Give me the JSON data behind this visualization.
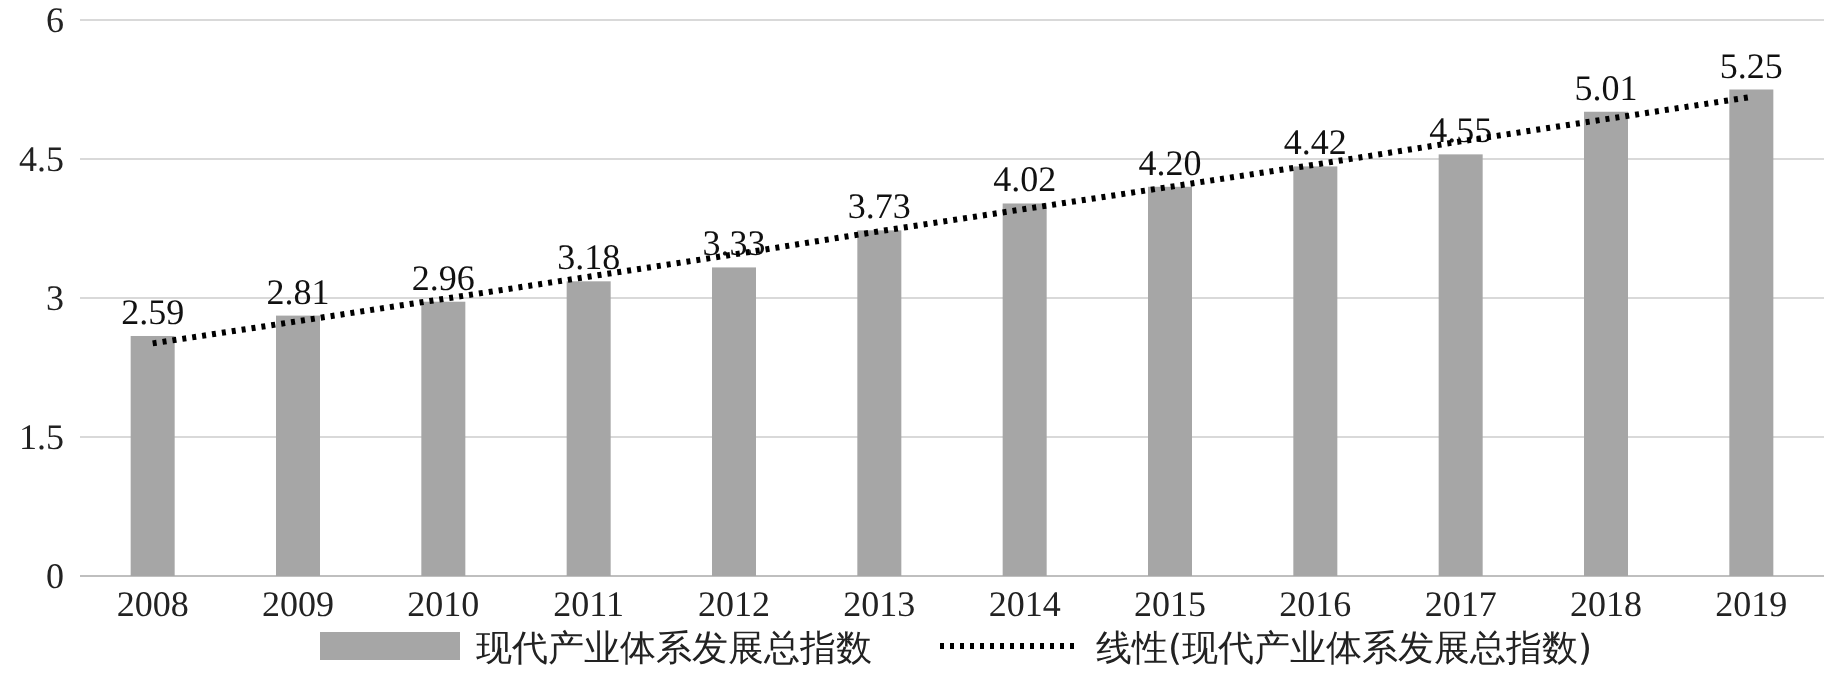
{
  "chart_data": {
    "type": "bar",
    "categories": [
      "2008",
      "2009",
      "2010",
      "2011",
      "2012",
      "2013",
      "2014",
      "2015",
      "2016",
      "2017",
      "2018",
      "2019"
    ],
    "series": [
      {
        "name": "现代产业体系发展总指数",
        "color": "#a6a6a6",
        "values": [
          2.59,
          2.81,
          2.96,
          3.18,
          3.33,
          3.73,
          4.02,
          4.2,
          4.42,
          4.55,
          5.01,
          5.25
        ],
        "value_labels": [
          "2.59",
          "2.81",
          "2.96",
          "3.18",
          "3.33",
          "3.73",
          "4.02",
          "4.20",
          "4.42",
          "4.55",
          "5.01",
          "5.25"
        ]
      },
      {
        "name": "线性(现代产业体系发展总指数)",
        "type": "line",
        "color": "#000000",
        "line_style": "dotted",
        "values": [
          2.51,
          2.75,
          2.99,
          3.23,
          3.47,
          3.72,
          3.96,
          4.2,
          4.44,
          4.69,
          4.93,
          5.17
        ]
      }
    ],
    "ylim": [
      0,
      6
    ],
    "yticks": [
      0,
      1.5,
      3,
      4.5,
      6
    ],
    "grid": "y",
    "legend": "bottom"
  }
}
